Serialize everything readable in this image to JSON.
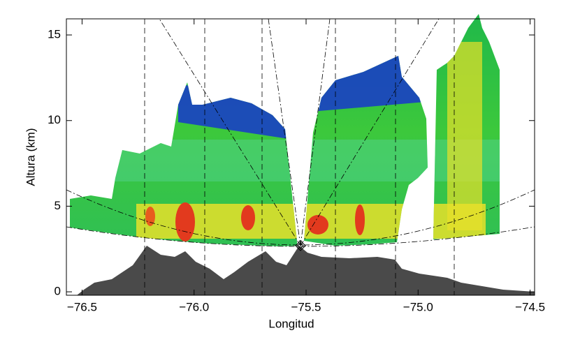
{
  "chart_data": {
    "type": "radar_section",
    "xlabel": "Longitud",
    "ylabel": "Altura (km)",
    "xlim": [
      -76.57,
      -74.48
    ],
    "ylim": [
      -0.2,
      15.94
    ],
    "xticks": [
      {
        "value": -76.5,
        "label": "−76.5"
      },
      {
        "value": -76.0,
        "label": "−76.0"
      },
      {
        "value": -75.5,
        "label": "−75.5"
      },
      {
        "value": -75.0,
        "label": "−75.0"
      },
      {
        "value": -74.5,
        "label": "−74.5"
      }
    ],
    "yticks": [
      0,
      5,
      10,
      15
    ]
  }
}
